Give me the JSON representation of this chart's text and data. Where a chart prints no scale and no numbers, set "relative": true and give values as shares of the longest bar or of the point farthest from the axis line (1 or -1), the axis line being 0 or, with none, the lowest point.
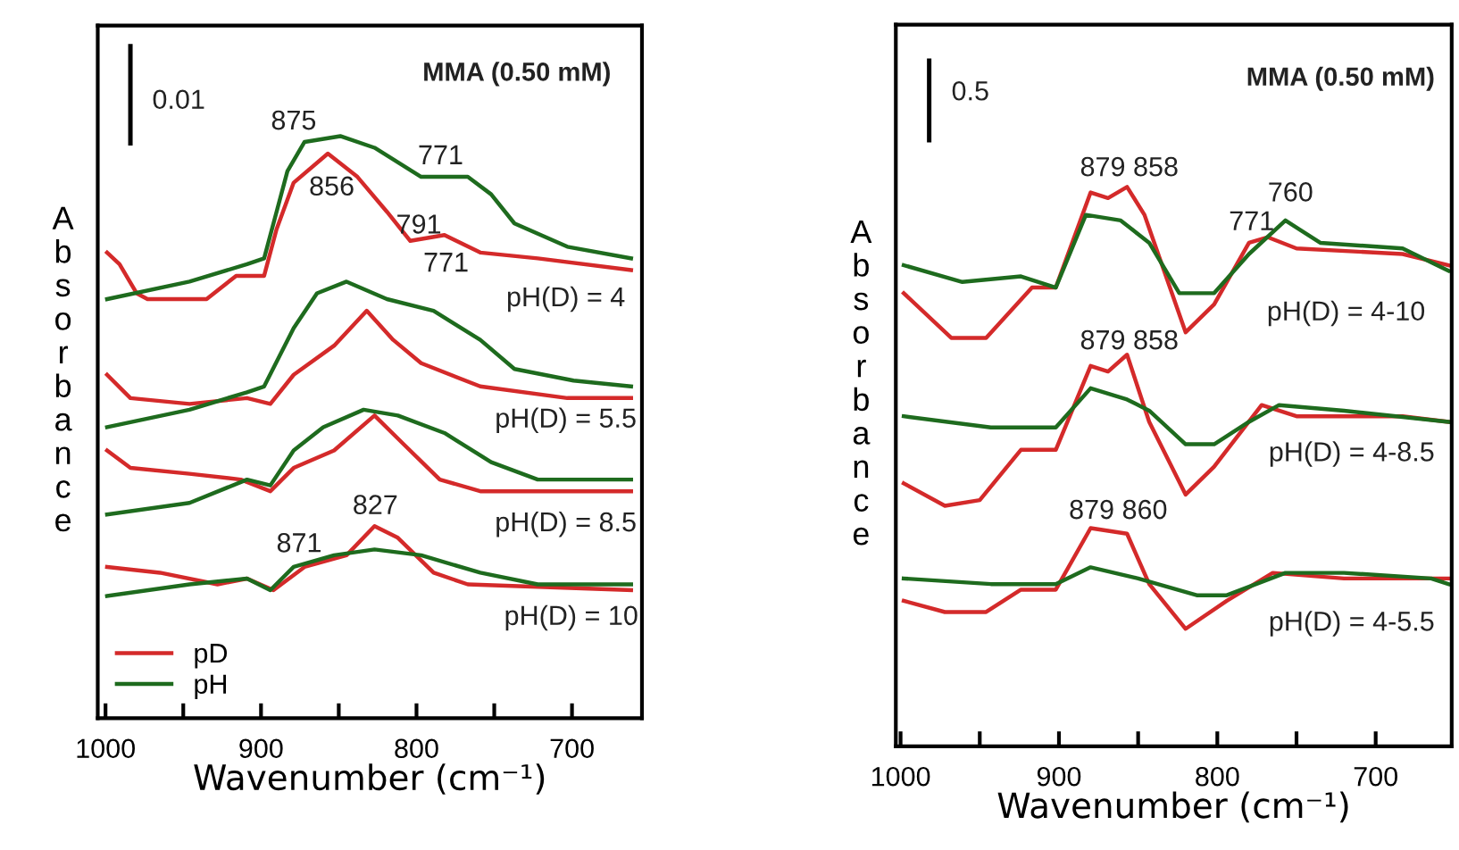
{
  "chart_data": [
    {
      "type": "line",
      "relative": true,
      "xlabel": "Wavenumber (cm⁻¹)",
      "ylabel": "Absorbance",
      "xlim": [
        1005,
        655
      ],
      "xticks": [
        1000,
        {
          "value": 950,
          "label": null
        },
        900,
        {
          "value": 850,
          "label": null
        },
        800,
        {
          "value": 750,
          "label": null
        },
        700
      ],
      "grid": false,
      "legend": "bottom left",
      "line_style": "solid",
      "marker": "none",
      "tick_labels": "x",
      "series": [
        {
          "name": "pD",
          "color": "#d42a2a",
          "x": [
            999,
            991,
            980,
            973,
            935,
            916,
            898,
            890,
            879,
            857,
            838,
            819,
            804,
            782,
            759,
            722,
            662
          ],
          "values": [
            0.8,
            0.78,
            0.73,
            0.72,
            0.72,
            0.76,
            0.76,
            0.84,
            0.92,
            0.97,
            0.93,
            0.87,
            0.82,
            0.83,
            0.8,
            0.79,
            0.77
          ]
        },
        {
          "name": "pH",
          "color": "#1e6b1e",
          "x": [
            999,
            946,
            909,
            898,
            890,
            883,
            872,
            849,
            827,
            797,
            767,
            752,
            737,
            703,
            662
          ],
          "values": [
            0.72,
            0.75,
            0.78,
            0.79,
            0.87,
            0.94,
            0.99,
            1.0,
            0.98,
            0.93,
            0.93,
            0.9,
            0.85,
            0.81,
            0.79
          ]
        },
        {
          "color": "#d42a2a",
          "x": [
            999,
            984,
            946,
            909,
            894,
            879,
            853,
            832,
            815,
            797,
            759,
            703,
            662
          ],
          "values": [
            0.59,
            0.55,
            0.54,
            0.55,
            0.54,
            0.59,
            0.64,
            0.7,
            0.65,
            0.61,
            0.57,
            0.55,
            0.55
          ]
        },
        {
          "color": "#1e6b1e",
          "x": [
            999,
            946,
            909,
            898,
            879,
            864,
            845,
            819,
            789,
            759,
            737,
            699,
            662
          ],
          "values": [
            0.5,
            0.53,
            0.56,
            0.57,
            0.67,
            0.73,
            0.75,
            0.72,
            0.7,
            0.65,
            0.6,
            0.58,
            0.57
          ]
        },
        {
          "color": "#d42a2a",
          "x": [
            999,
            984,
            946,
            913,
            894,
            879,
            853,
            827,
            808,
            785,
            759,
            662
          ],
          "values": [
            0.46,
            0.43,
            0.42,
            0.41,
            0.39,
            0.43,
            0.46,
            0.52,
            0.47,
            0.41,
            0.39,
            0.39
          ]
        },
        {
          "color": "#1e6b1e",
          "x": [
            999,
            946,
            909,
            894,
            879,
            860,
            834,
            812,
            782,
            752,
            722,
            662
          ],
          "values": [
            0.35,
            0.37,
            0.41,
            0.4,
            0.46,
            0.5,
            0.53,
            0.52,
            0.49,
            0.44,
            0.41,
            0.41
          ]
        },
        {
          "color": "#d42a2a",
          "x": [
            999,
            965,
            928,
            909,
            892,
            872,
            845,
            827,
            812,
            789,
            767,
            662
          ],
          "values": [
            0.26,
            0.25,
            0.23,
            0.24,
            0.22,
            0.26,
            0.28,
            0.33,
            0.31,
            0.25,
            0.23,
            0.22
          ]
        },
        {
          "color": "#1e6b1e",
          "x": [
            999,
            946,
            909,
            894,
            879,
            853,
            827,
            797,
            759,
            722,
            662
          ],
          "values": [
            0.21,
            0.23,
            0.24,
            0.22,
            0.26,
            0.28,
            0.29,
            0.28,
            0.25,
            0.23,
            0.23
          ]
        }
      ],
      "annotations": [
        "MMA (0.50 mM)",
        "0.01",
        "875",
        "856",
        "771",
        "791",
        "771",
        "pH(D) = 4",
        "pH(D) = 5.5",
        "pH(D) = 8.5",
        "827",
        "871",
        "pH(D) = 10"
      ]
    },
    {
      "type": "line",
      "relative": true,
      "xlabel": "Wavenumber (cm⁻¹)",
      "ylabel": "Absorbance",
      "xlim": [
        1003,
        652
      ],
      "xticks": [
        1000,
        {
          "value": 950,
          "label": null
        },
        900,
        {
          "value": 850,
          "label": null
        },
        800,
        {
          "value": 750,
          "label": null
        },
        700
      ],
      "grid": false,
      "line_style": "solid",
      "marker": "none",
      "tick_labels": "x",
      "series": [
        {
          "color": "#d42a2a",
          "x": [
            998,
            968,
            946,
            917,
            902,
            880,
            869,
            857,
            846,
            820,
            802,
            780,
            768,
            750,
            683,
            654
          ],
          "values": [
            0.81,
            0.73,
            0.73,
            0.82,
            0.82,
            0.99,
            0.98,
            1.0,
            0.95,
            0.74,
            0.79,
            0.9,
            0.91,
            0.89,
            0.88,
            0.86
          ]
        },
        {
          "color": "#1e6b1e",
          "x": [
            998,
            961,
            924,
            902,
            883,
            861,
            843,
            824,
            802,
            780,
            757,
            735,
            683,
            654
          ],
          "values": [
            0.86,
            0.83,
            0.84,
            0.82,
            0.95,
            0.94,
            0.9,
            0.81,
            0.81,
            0.88,
            0.94,
            0.9,
            0.89,
            0.85
          ]
        },
        {
          "color": "#d42a2a",
          "x": [
            998,
            972,
            950,
            924,
            902,
            880,
            869,
            857,
            843,
            820,
            802,
            772,
            750,
            683,
            654
          ],
          "values": [
            0.47,
            0.43,
            0.44,
            0.53,
            0.53,
            0.68,
            0.67,
            0.7,
            0.58,
            0.45,
            0.5,
            0.61,
            0.59,
            0.59,
            0.58
          ]
        },
        {
          "color": "#1e6b1e",
          "x": [
            998,
            943,
            902,
            880,
            857,
            843,
            820,
            802,
            780,
            761,
            720,
            654
          ],
          "values": [
            0.59,
            0.57,
            0.57,
            0.64,
            0.62,
            0.6,
            0.54,
            0.54,
            0.58,
            0.61,
            0.6,
            0.58
          ]
        },
        {
          "color": "#d42a2a",
          "x": [
            998,
            972,
            946,
            924,
            902,
            880,
            857,
            843,
            820,
            794,
            765,
            720,
            665,
            654
          ],
          "values": [
            0.26,
            0.24,
            0.24,
            0.28,
            0.28,
            0.39,
            0.38,
            0.29,
            0.21,
            0.26,
            0.31,
            0.3,
            0.3,
            0.3
          ]
        },
        {
          "color": "#1e6b1e",
          "x": [
            998,
            943,
            902,
            880,
            850,
            813,
            794,
            757,
            720,
            665,
            654
          ],
          "values": [
            0.3,
            0.29,
            0.29,
            0.32,
            0.3,
            0.27,
            0.27,
            0.31,
            0.31,
            0.3,
            0.29
          ]
        }
      ],
      "annotations": [
        "MMA (0.50 mM)",
        "0.5",
        "879 858",
        "760",
        "771",
        "pH(D) = 4-10",
        "879 858",
        "pH(D) = 4-8.5",
        "879 860",
        "pH(D) = 4-5.5"
      ]
    }
  ]
}
